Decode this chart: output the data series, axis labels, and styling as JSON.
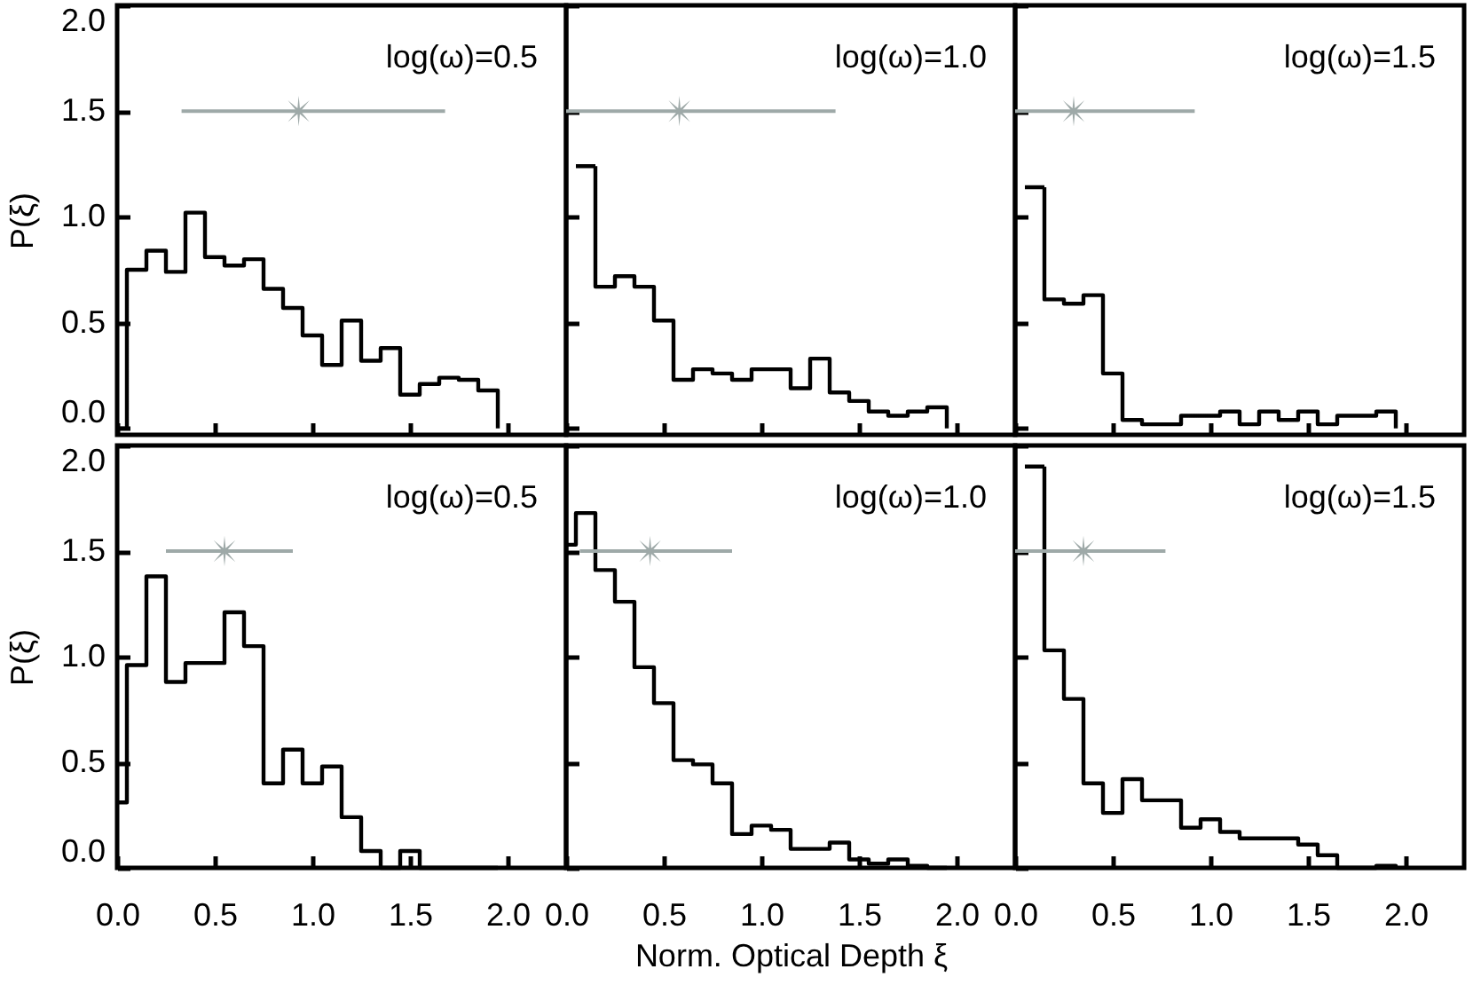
{
  "chart_data": [
    {
      "type": "histogram",
      "bins": [
        0,
        0.05,
        0.15,
        0.25,
        0.35,
        0.45,
        0.55,
        0.65,
        0.75,
        0.85,
        0.95,
        1.05,
        1.15,
        1.25,
        1.35,
        1.45,
        1.55,
        1.65,
        1.75,
        1.85,
        1.95
      ],
      "series": [
        {
          "color": "#000000",
          "values": [
            0,
            0.75,
            0.84,
            0.74,
            1.02,
            0.81,
            0.77,
            0.8,
            0.66,
            0.57,
            0.44,
            0.3,
            0.51,
            0.32,
            0.38,
            0.16,
            0.21,
            0.24,
            0.23,
            0.18
          ]
        },
        {
          "type": "scatter",
          "color": "#9ea9a8",
          "marker": "star",
          "x": [
            0.93
          ],
          "values": [
            1.5
          ],
          "xerrors": [
            [
              0.33,
              1.68
            ]
          ]
        }
      ],
      "xlim": [
        0,
        2.3
      ],
      "ylim": [
        -0.03,
        2.0
      ],
      "xticks": [
        {
          "value": 0,
          "label": null
        },
        {
          "value": 0.5,
          "label": null
        },
        {
          "value": 1,
          "label": null
        },
        {
          "value": 1.5,
          "label": null
        },
        {
          "value": 2,
          "label": null
        }
      ],
      "yticks": [
        {
          "value": 0,
          "label": "0.0"
        },
        {
          "value": 0.5,
          "label": "0.5"
        },
        {
          "value": 1,
          "label": "1.0"
        },
        {
          "value": 1.5,
          "label": "1.5"
        },
        {
          "value": 2,
          "label": "2.0"
        }
      ],
      "tick_labels": "y",
      "ylabel": "P(ξ)",
      "annotations": [
        "log(ω)=0.5"
      ],
      "grid": false
    },
    {
      "type": "histogram",
      "bins": [
        0.05,
        0.15,
        0.25,
        0.35,
        0.45,
        0.55,
        0.65,
        0.75,
        0.85,
        0.95,
        1.05,
        1.15,
        1.25,
        1.35,
        1.45,
        1.55,
        1.65,
        1.75,
        1.85,
        1.95
      ],
      "series": [
        {
          "color": "#000000",
          "values": [
            1.24,
            0.67,
            0.72,
            0.67,
            0.51,
            0.23,
            0.28,
            0.26,
            0.23,
            0.28,
            0.28,
            0.19,
            0.33,
            0.17,
            0.13,
            0.08,
            0.06,
            0.08,
            0.1
          ]
        },
        {
          "type": "scatter",
          "color": "#9ea9a8",
          "marker": "star",
          "x": [
            0.58
          ],
          "values": [
            1.5
          ],
          "xerrors": [
            [
              0,
              1.38
            ]
          ]
        }
      ],
      "xlim": [
        0,
        2.3
      ],
      "ylim": [
        -0.03,
        2.0
      ],
      "xticks": [
        {
          "value": 0,
          "label": null
        },
        {
          "value": 0.5,
          "label": null
        },
        {
          "value": 1,
          "label": null
        },
        {
          "value": 1.5,
          "label": null
        },
        {
          "value": 2,
          "label": null
        }
      ],
      "yticks": [
        {
          "value": 0,
          "label": null
        },
        {
          "value": 0.5,
          "label": null
        },
        {
          "value": 1,
          "label": null
        },
        {
          "value": 1.5,
          "label": null
        },
        {
          "value": 2,
          "label": null
        }
      ],
      "tick_labels": false,
      "annotations": [
        "log(ω)=1.0"
      ],
      "grid": false
    },
    {
      "type": "histogram",
      "bins": [
        0.05,
        0.15,
        0.25,
        0.35,
        0.45,
        0.55,
        0.65,
        0.75,
        0.85,
        0.95,
        1.05,
        1.15,
        1.25,
        1.35,
        1.45,
        1.55,
        1.65,
        1.75,
        1.85,
        1.95
      ],
      "series": [
        {
          "color": "#000000",
          "values": [
            1.14,
            0.61,
            0.59,
            0.63,
            0.26,
            0.04,
            0.02,
            0.02,
            0.06,
            0.06,
            0.08,
            0.02,
            0.08,
            0.04,
            0.08,
            0.02,
            0.06,
            0.06,
            0.08
          ]
        },
        {
          "type": "scatter",
          "color": "#9ea9a8",
          "marker": "star",
          "x": [
            0.3
          ],
          "values": [
            1.5
          ],
          "xerrors": [
            [
              0,
              0.92
            ]
          ]
        }
      ],
      "xlim": [
        0,
        2.3
      ],
      "ylim": [
        -0.03,
        2.0
      ],
      "xticks": [
        {
          "value": 0,
          "label": null
        },
        {
          "value": 0.5,
          "label": null
        },
        {
          "value": 1,
          "label": null
        },
        {
          "value": 1.5,
          "label": null
        },
        {
          "value": 2,
          "label": null
        }
      ],
      "yticks": [
        {
          "value": 0,
          "label": null
        },
        {
          "value": 0.5,
          "label": null
        },
        {
          "value": 1,
          "label": null
        },
        {
          "value": 1.5,
          "label": null
        },
        {
          "value": 2,
          "label": null
        }
      ],
      "tick_labels": false,
      "annotations": [
        "log(ω)=1.5"
      ],
      "grid": false
    },
    {
      "type": "histogram",
      "bins": [
        0,
        0.05,
        0.15,
        0.25,
        0.35,
        0.45,
        0.55,
        0.65,
        0.75,
        0.85,
        0.95,
        1.05,
        1.15,
        1.25,
        1.35,
        1.45,
        1.55,
        1.65,
        1.75,
        1.85,
        1.95
      ],
      "series": [
        {
          "color": "#000000",
          "values": [
            0.31,
            0.96,
            1.38,
            0.88,
            0.97,
            0.97,
            1.21,
            1.05,
            0.4,
            0.56,
            0.4,
            0.48,
            0.24,
            0.08,
            0,
            0.08,
            0,
            0,
            0,
            0
          ]
        },
        {
          "type": "scatter",
          "color": "#9ea9a8",
          "marker": "star",
          "x": [
            0.55
          ],
          "values": [
            1.5
          ],
          "xerrors": [
            [
              0.25,
              0.9
            ]
          ]
        }
      ],
      "xlim": [
        0,
        2.3
      ],
      "ylim": [
        0,
        2.0
      ],
      "xticks": [
        {
          "value": 0,
          "label": "0.0"
        },
        {
          "value": 0.5,
          "label": "0.5"
        },
        {
          "value": 1,
          "label": "1.0"
        },
        {
          "value": 1.5,
          "label": "1.5"
        },
        {
          "value": 2,
          "label": "2.0"
        }
      ],
      "yticks": [
        {
          "value": 0,
          "label": "0.0"
        },
        {
          "value": 0.5,
          "label": "0.5"
        },
        {
          "value": 1,
          "label": "1.0"
        },
        {
          "value": 1.5,
          "label": "1.5"
        },
        {
          "value": 2,
          "label": "2.0"
        }
      ],
      "ylabel": "P(ξ)",
      "annotations": [
        "log(ω)=0.5"
      ],
      "grid": false
    },
    {
      "type": "histogram",
      "bins": [
        0,
        0.05,
        0.15,
        0.25,
        0.35,
        0.45,
        0.55,
        0.65,
        0.75,
        0.85,
        0.95,
        1.05,
        1.15,
        1.25,
        1.35,
        1.45,
        1.55,
        1.65,
        1.75,
        1.85,
        1.95
      ],
      "series": [
        {
          "color": "#000000",
          "values": [
            1.53,
            1.68,
            1.41,
            1.26,
            0.95,
            0.78,
            0.51,
            0.49,
            0.4,
            0.16,
            0.2,
            0.18,
            0.09,
            0.09,
            0.12,
            0.04,
            0.02,
            0.04,
            0.01,
            0
          ]
        },
        {
          "type": "scatter",
          "color": "#9ea9a8",
          "marker": "star",
          "x": [
            0.43
          ],
          "values": [
            1.5
          ],
          "xerrors": [
            [
              0.07,
              0.85
            ]
          ]
        }
      ],
      "xlim": [
        0,
        2.3
      ],
      "ylim": [
        0,
        2.0
      ],
      "xticks": [
        {
          "value": 0,
          "label": "0.0"
        },
        {
          "value": 0.5,
          "label": "0.5"
        },
        {
          "value": 1,
          "label": "1.0"
        },
        {
          "value": 1.5,
          "label": "1.5"
        },
        {
          "value": 2,
          "label": "2.0"
        }
      ],
      "yticks": [
        {
          "value": 0,
          "label": null
        },
        {
          "value": 0.5,
          "label": null
        },
        {
          "value": 1,
          "label": null
        },
        {
          "value": 1.5,
          "label": null
        },
        {
          "value": 2,
          "label": null
        }
      ],
      "tick_labels": "x",
      "xlabel": "Norm. Optical Depth ξ",
      "annotations": [
        "log(ω)=1.0"
      ],
      "grid": false
    },
    {
      "type": "histogram",
      "bins": [
        0.05,
        0.15,
        0.25,
        0.35,
        0.45,
        0.55,
        0.65,
        0.75,
        0.85,
        0.95,
        1.05,
        1.15,
        1.25,
        1.35,
        1.45,
        1.55,
        1.65,
        1.75,
        1.85,
        1.95
      ],
      "series": [
        {
          "color": "#000000",
          "values": [
            1.9,
            1.03,
            0.8,
            0.4,
            0.26,
            0.42,
            0.32,
            0.32,
            0.19,
            0.23,
            0.17,
            0.14,
            0.14,
            0.14,
            0.11,
            0.06,
            0,
            0,
            0.01
          ]
        },
        {
          "type": "scatter",
          "color": "#9ea9a8",
          "marker": "star",
          "x": [
            0.35
          ],
          "values": [
            1.5
          ],
          "xerrors": [
            [
              0,
              0.77
            ]
          ]
        }
      ],
      "xlim": [
        0,
        2.3
      ],
      "ylim": [
        0,
        2.0
      ],
      "xticks": [
        {
          "value": 0,
          "label": "0.0"
        },
        {
          "value": 0.5,
          "label": "0.5"
        },
        {
          "value": 1,
          "label": "1.0"
        },
        {
          "value": 1.5,
          "label": "1.5"
        },
        {
          "value": 2,
          "label": "2.0"
        }
      ],
      "yticks": [
        {
          "value": 0,
          "label": null
        },
        {
          "value": 0.5,
          "label": null
        },
        {
          "value": 1,
          "label": null
        },
        {
          "value": 1.5,
          "label": null
        },
        {
          "value": 2,
          "label": null
        }
      ],
      "tick_labels": "x",
      "annotations": [
        "log(ω)=1.5"
      ],
      "grid": false
    }
  ]
}
